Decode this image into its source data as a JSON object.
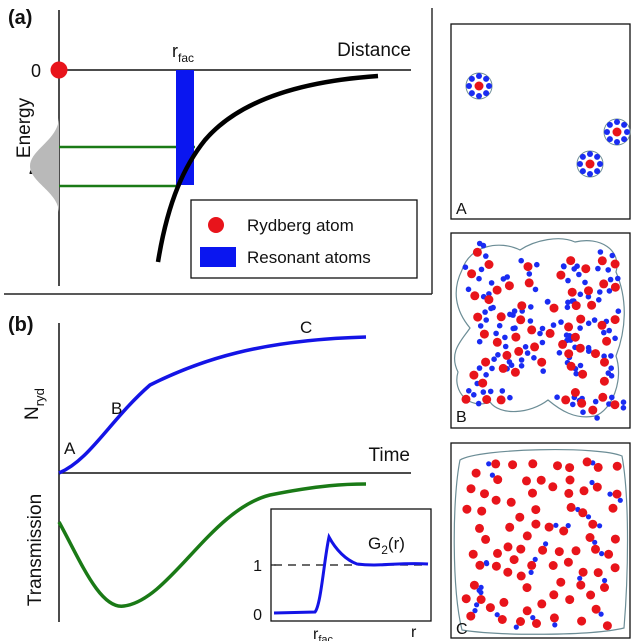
{
  "panel_a": {
    "label": "(a)",
    "x_axis_label": "Distance",
    "y_axis_label": "Energy",
    "zero_label": "0",
    "delta_label": "Δ",
    "rfac_label": "r",
    "rfac_sub": "fac",
    "legend": [
      {
        "label": "Rydberg atom",
        "color": "#e8141b",
        "marker": "circle"
      },
      {
        "label": "Resonant atoms",
        "color": "#0a16f0",
        "marker": "rect"
      }
    ]
  },
  "panel_b": {
    "label": "(b)",
    "x_axis_label": "Time",
    "nryd_label": "N",
    "nryd_sub": "ryd",
    "transmission_label": "Transmission",
    "points": [
      "A",
      "B",
      "C"
    ],
    "curve_colors": {
      "nryd": "#1414e6",
      "transmission": "#1a7a16"
    }
  },
  "inset": {
    "title": "G",
    "title_sub": "2",
    "title_suffix": "(r)",
    "y_ticks": [
      "0",
      "1"
    ],
    "x_tick_label": "r",
    "x_tick_sub": "fac",
    "x_end_label": "r"
  },
  "snapshots": [
    {
      "label": "A"
    },
    {
      "label": "B"
    },
    {
      "label": "C"
    }
  ],
  "colors": {
    "rydberg": "#e8141b",
    "resonant": "#1a2cf2",
    "outline": "#6c8d96"
  }
}
